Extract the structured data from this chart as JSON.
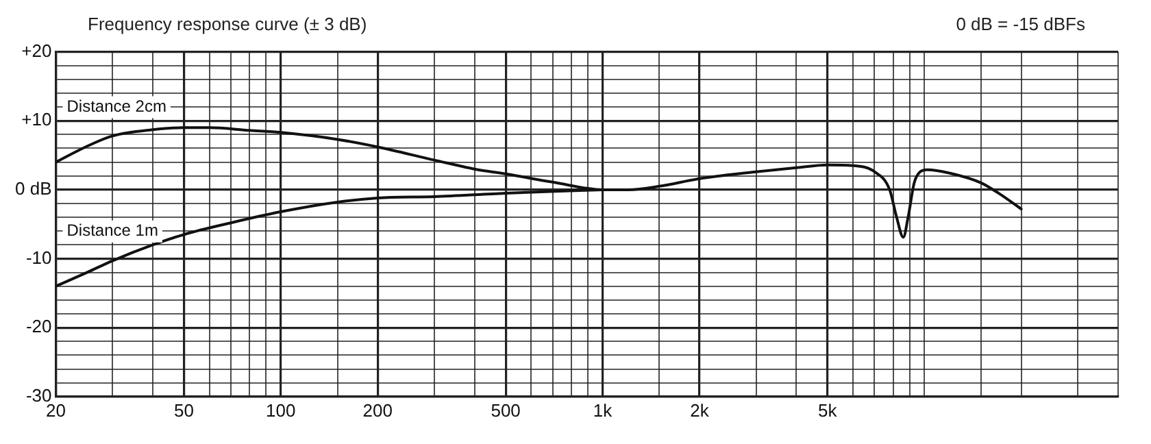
{
  "chart_data": {
    "type": "line",
    "title": "Frequency response curve (± 3 dB)",
    "annotations": [
      "0 dB = -15 dBFs"
    ],
    "log": "x",
    "xlim": [
      20,
      40000
    ],
    "ylim": [
      -30,
      20
    ],
    "xticks": [
      20,
      {
        "value": 30,
        "label": null
      },
      {
        "value": 40,
        "label": null
      },
      50,
      {
        "value": 60,
        "label": null
      },
      {
        "value": 70,
        "label": null
      },
      {
        "value": 80,
        "label": null
      },
      {
        "value": 90,
        "label": null
      },
      100,
      {
        "value": 150,
        "label": null
      },
      200,
      {
        "value": 300,
        "label": null
      },
      {
        "value": 400,
        "label": null
      },
      500,
      {
        "value": 600,
        "label": null
      },
      {
        "value": 700,
        "label": null
      },
      {
        "value": 800,
        "label": null
      },
      {
        "value": 900,
        "label": null
      },
      {
        "value": 1000,
        "label": "1k"
      },
      {
        "value": 1500,
        "label": null
      },
      {
        "value": 2000,
        "label": "2k"
      },
      {
        "value": 3000,
        "label": null
      },
      {
        "value": 4000,
        "label": null
      },
      {
        "value": 5000,
        "label": "5k"
      },
      {
        "value": 6000,
        "label": null
      },
      {
        "value": 7000,
        "label": null
      },
      {
        "value": 8000,
        "label": null
      },
      {
        "value": 9000,
        "label": null
      },
      {
        "value": 10000,
        "label": null
      },
      {
        "value": 15000,
        "label": null
      },
      {
        "value": 20000,
        "label": null
      },
      {
        "value": 30000,
        "label": null
      },
      {
        "value": 40000,
        "label": null
      }
    ],
    "yticks": [
      {
        "value": -30,
        "label": "-30"
      },
      {
        "value": -28,
        "label": null
      },
      {
        "value": -26,
        "label": null
      },
      {
        "value": -24,
        "label": null
      },
      {
        "value": -22,
        "label": null
      },
      {
        "value": -20,
        "label": "-20"
      },
      {
        "value": -18,
        "label": null
      },
      {
        "value": -16,
        "label": null
      },
      {
        "value": -14,
        "label": null
      },
      {
        "value": -12,
        "label": null
      },
      {
        "value": -10,
        "label": "-10"
      },
      {
        "value": -8,
        "label": null
      },
      {
        "value": -6,
        "label": null
      },
      {
        "value": -4,
        "label": null
      },
      {
        "value": -2,
        "label": null
      },
      {
        "value": 0,
        "label": "0 dB"
      },
      {
        "value": 2,
        "label": null
      },
      {
        "value": 4,
        "label": null
      },
      {
        "value": 6,
        "label": null
      },
      {
        "value": 8,
        "label": null
      },
      {
        "value": 10,
        "label": "+10"
      },
      {
        "value": 12,
        "label": null
      },
      {
        "value": 14,
        "label": null
      },
      {
        "value": 16,
        "label": null
      },
      {
        "value": 18,
        "label": null
      },
      {
        "value": 20,
        "label": "+20"
      }
    ],
    "grid": true,
    "marker": "none",
    "line_style": "solid",
    "legend": false,
    "series": [
      {
        "name": "Distance 2cm",
        "color": "#111111",
        "x": [
          20,
          25,
          30,
          40,
          50,
          60,
          80,
          100,
          150,
          200,
          300,
          400,
          500,
          700,
          1000,
          1200,
          1500,
          2000,
          3000,
          4000,
          5000,
          6000,
          7000,
          7800,
          8200,
          8600,
          8900,
          9300,
          9700,
          10200,
          12000,
          15000,
          17000,
          20000
        ],
        "values": [
          4,
          6.3,
          7.8,
          8.7,
          9,
          9,
          8.6,
          8.3,
          7.3,
          6.2,
          4.3,
          3,
          2.3,
          1.1,
          0,
          0,
          0.5,
          1.6,
          2.6,
          3.2,
          3.6,
          3.5,
          2.6,
          0,
          -4,
          -6.9,
          -4,
          1,
          2.6,
          2.9,
          2.4,
          1,
          -0.5,
          -2.8
        ]
      },
      {
        "name": "Distance 1m",
        "color": "#111111",
        "x": [
          20,
          25,
          30,
          40,
          50,
          70,
          100,
          150,
          200,
          300,
          500,
          1000
        ],
        "values": [
          -14,
          -12,
          -10.3,
          -8,
          -6.5,
          -4.8,
          -3.2,
          -1.8,
          -1.2,
          -1,
          -0.5,
          0
        ]
      }
    ]
  }
}
